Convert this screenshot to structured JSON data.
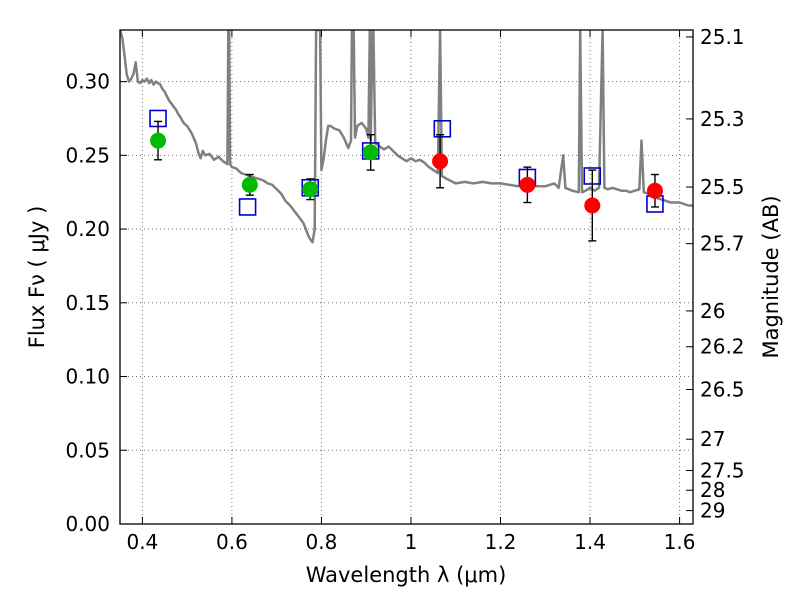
{
  "chart_data": {
    "type": "scatter",
    "title": "",
    "xlabel": "Wavelength  λ (μm)",
    "ylabel": "Flux  Fν  ( μJy )",
    "ylabel_right": "Magnitude (AB)",
    "xlim": [
      0.35,
      1.63
    ],
    "ylim": [
      0.0,
      0.335
    ],
    "grid": true,
    "x_ticks": [
      {
        "value": 0.4,
        "label": "0.4"
      },
      {
        "value": 0.6,
        "label": "0.6"
      },
      {
        "value": 0.8,
        "label": "0.8"
      },
      {
        "value": 1.0,
        "label": "1"
      },
      {
        "value": 1.2,
        "label": "1.2"
      },
      {
        "value": 1.4,
        "label": "1.4"
      },
      {
        "value": 1.6,
        "label": "1.6"
      }
    ],
    "y_ticks": [
      {
        "value": 0.0,
        "label": "0.00"
      },
      {
        "value": 0.05,
        "label": "0.05"
      },
      {
        "value": 0.1,
        "label": "0.10"
      },
      {
        "value": 0.15,
        "label": "0.15"
      },
      {
        "value": 0.2,
        "label": "0.20"
      },
      {
        "value": 0.25,
        "label": "0.25"
      },
      {
        "value": 0.3,
        "label": "0.30"
      }
    ],
    "right_ticks": [
      {
        "label": "25.1",
        "flux": 0.3303
      },
      {
        "label": "25.3",
        "flux": 0.2747
      },
      {
        "label": "25.5",
        "flux": 0.2285
      },
      {
        "label": "25.7",
        "flux": 0.1901
      },
      {
        "label": "26",
        "flux": 0.1445
      },
      {
        "label": "26.2",
        "flux": 0.1202
      },
      {
        "label": "26.5",
        "flux": 0.0912
      },
      {
        "label": "27",
        "flux": 0.0575
      },
      {
        "label": "27.5",
        "flux": 0.0363
      },
      {
        "label": "28",
        "flux": 0.0229
      },
      {
        "label": "29",
        "flux": 0.0091
      }
    ],
    "series": [
      {
        "kind": "model-spectrum",
        "color": "#808080",
        "points": [
          [
            0.35,
            0.335
          ],
          [
            0.355,
            0.33
          ],
          [
            0.36,
            0.318
          ],
          [
            0.365,
            0.305
          ],
          [
            0.37,
            0.3
          ],
          [
            0.375,
            0.302
          ],
          [
            0.38,
            0.305
          ],
          [
            0.385,
            0.313
          ],
          [
            0.39,
            0.3
          ],
          [
            0.395,
            0.299
          ],
          [
            0.4,
            0.301
          ],
          [
            0.405,
            0.3
          ],
          [
            0.41,
            0.302
          ],
          [
            0.415,
            0.299
          ],
          [
            0.42,
            0.301
          ],
          [
            0.425,
            0.298
          ],
          [
            0.43,
            0.3
          ],
          [
            0.435,
            0.299
          ],
          [
            0.44,
            0.298
          ],
          [
            0.445,
            0.295
          ],
          [
            0.45,
            0.293
          ],
          [
            0.455,
            0.29
          ],
          [
            0.46,
            0.287
          ],
          [
            0.465,
            0.285
          ],
          [
            0.47,
            0.283
          ],
          [
            0.475,
            0.281
          ],
          [
            0.48,
            0.278
          ],
          [
            0.485,
            0.276
          ],
          [
            0.49,
            0.273
          ],
          [
            0.495,
            0.271
          ],
          [
            0.5,
            0.27
          ],
          [
            0.51,
            0.265
          ],
          [
            0.52,
            0.258
          ],
          [
            0.525,
            0.252
          ],
          [
            0.53,
            0.248
          ],
          [
            0.535,
            0.253
          ],
          [
            0.54,
            0.25
          ],
          [
            0.55,
            0.251
          ],
          [
            0.56,
            0.247
          ],
          [
            0.57,
            0.249
          ],
          [
            0.58,
            0.246
          ],
          [
            0.59,
            0.244
          ],
          [
            0.592,
            0.335
          ],
          [
            0.594,
            0.335
          ],
          [
            0.596,
            0.244
          ],
          [
            0.6,
            0.242
          ],
          [
            0.61,
            0.241
          ],
          [
            0.62,
            0.238
          ],
          [
            0.63,
            0.237
          ],
          [
            0.64,
            0.236
          ],
          [
            0.65,
            0.235
          ],
          [
            0.66,
            0.234
          ],
          [
            0.67,
            0.233
          ],
          [
            0.68,
            0.231
          ],
          [
            0.69,
            0.23
          ],
          [
            0.7,
            0.227
          ],
          [
            0.71,
            0.224
          ],
          [
            0.72,
            0.219
          ],
          [
            0.73,
            0.216
          ],
          [
            0.74,
            0.212
          ],
          [
            0.75,
            0.208
          ],
          [
            0.76,
            0.204
          ],
          [
            0.765,
            0.2
          ],
          [
            0.77,
            0.196
          ],
          [
            0.775,
            0.193
          ],
          [
            0.78,
            0.191
          ],
          [
            0.785,
            0.2
          ],
          [
            0.788,
            0.335
          ],
          [
            0.791,
            0.335
          ],
          [
            0.794,
            0.335
          ],
          [
            0.797,
            0.335
          ],
          [
            0.8,
            0.24
          ],
          [
            0.805,
            0.248
          ],
          [
            0.81,
            0.26
          ],
          [
            0.815,
            0.27
          ],
          [
            0.82,
            0.27
          ],
          [
            0.83,
            0.268
          ],
          [
            0.84,
            0.267
          ],
          [
            0.85,
            0.262
          ],
          [
            0.86,
            0.255
          ],
          [
            0.866,
            0.26
          ],
          [
            0.868,
            0.335
          ],
          [
            0.872,
            0.335
          ],
          [
            0.875,
            0.262
          ],
          [
            0.88,
            0.27
          ],
          [
            0.89,
            0.272
          ],
          [
            0.9,
            0.268
          ],
          [
            0.905,
            0.262
          ],
          [
            0.908,
            0.335
          ],
          [
            0.91,
            0.26
          ],
          [
            0.914,
            0.335
          ],
          [
            0.916,
            0.335
          ],
          [
            0.92,
            0.258
          ],
          [
            0.94,
            0.254
          ],
          [
            0.95,
            0.256
          ],
          [
            0.97,
            0.25
          ],
          [
            0.98,
            0.248
          ],
          [
            0.99,
            0.246
          ],
          [
            1.0,
            0.248
          ],
          [
            1.01,
            0.246
          ],
          [
            1.02,
            0.247
          ],
          [
            1.03,
            0.245
          ],
          [
            1.04,
            0.242
          ],
          [
            1.05,
            0.24
          ],
          [
            1.06,
            0.238
          ],
          [
            1.065,
            0.335
          ],
          [
            1.069,
            0.236
          ],
          [
            1.08,
            0.234
          ],
          [
            1.1,
            0.231
          ],
          [
            1.12,
            0.232
          ],
          [
            1.14,
            0.231
          ],
          [
            1.16,
            0.232
          ],
          [
            1.18,
            0.231
          ],
          [
            1.2,
            0.231
          ],
          [
            1.22,
            0.23
          ],
          [
            1.24,
            0.229
          ],
          [
            1.26,
            0.23
          ],
          [
            1.28,
            0.229
          ],
          [
            1.3,
            0.229
          ],
          [
            1.32,
            0.231
          ],
          [
            1.33,
            0.228
          ],
          [
            1.34,
            0.25
          ],
          [
            1.345,
            0.228
          ],
          [
            1.36,
            0.226
          ],
          [
            1.375,
            0.225
          ],
          [
            1.378,
            0.335
          ],
          [
            1.382,
            0.225
          ],
          [
            1.39,
            0.226
          ],
          [
            1.4,
            0.228
          ],
          [
            1.41,
            0.226
          ],
          [
            1.42,
            0.228
          ],
          [
            1.428,
            0.335
          ],
          [
            1.432,
            0.228
          ],
          [
            1.44,
            0.227
          ],
          [
            1.45,
            0.228
          ],
          [
            1.46,
            0.227
          ],
          [
            1.47,
            0.226
          ],
          [
            1.48,
            0.226
          ],
          [
            1.49,
            0.225
          ],
          [
            1.5,
            0.226
          ],
          [
            1.51,
            0.227
          ],
          [
            1.515,
            0.26
          ],
          [
            1.52,
            0.225
          ],
          [
            1.53,
            0.224
          ],
          [
            1.54,
            0.223
          ],
          [
            1.55,
            0.221
          ],
          [
            1.56,
            0.22
          ],
          [
            1.58,
            0.218
          ],
          [
            1.6,
            0.218
          ],
          [
            1.62,
            0.216
          ],
          [
            1.63,
            0.216
          ]
        ]
      },
      {
        "kind": "model-photometry",
        "marker": "open-square",
        "color": "#0000cc",
        "points": [
          {
            "x": 0.435,
            "y": 0.275
          },
          {
            "x": 0.635,
            "y": 0.215
          },
          {
            "x": 0.775,
            "y": 0.228
          },
          {
            "x": 0.91,
            "y": 0.253
          },
          {
            "x": 1.07,
            "y": 0.268
          },
          {
            "x": 1.26,
            "y": 0.235
          },
          {
            "x": 1.405,
            "y": 0.236
          },
          {
            "x": 1.545,
            "y": 0.217
          }
        ]
      },
      {
        "kind": "observed-optical",
        "marker": "filled-circle",
        "color": "#00bb00",
        "points": [
          {
            "x": 0.435,
            "y": 0.26,
            "yerr": 0.013
          },
          {
            "x": 0.64,
            "y": 0.23,
            "yerr": 0.007
          },
          {
            "x": 0.775,
            "y": 0.227,
            "yerr": 0.007
          },
          {
            "x": 0.91,
            "y": 0.252,
            "yerr": 0.012
          }
        ]
      },
      {
        "kind": "observed-infrared",
        "marker": "filled-circle",
        "color": "#ff0000",
        "points": [
          {
            "x": 1.065,
            "y": 0.246,
            "yerr": 0.018
          },
          {
            "x": 1.26,
            "y": 0.23,
            "yerr": 0.012
          },
          {
            "x": 1.405,
            "y": 0.216,
            "yerr": 0.024
          },
          {
            "x": 1.545,
            "y": 0.226,
            "yerr": 0.011
          }
        ]
      }
    ]
  }
}
